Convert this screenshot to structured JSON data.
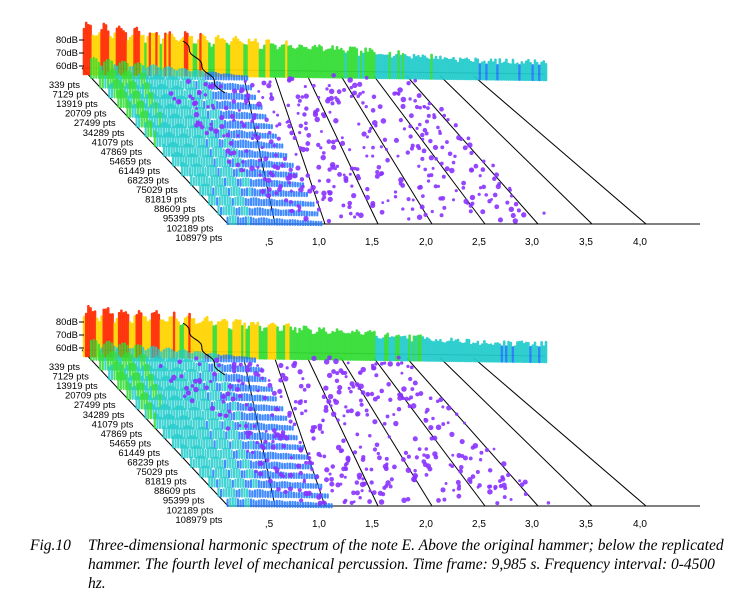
{
  "figure": {
    "db_labels": [
      "80dB",
      "70dB",
      "60dB"
    ],
    "row_labels": [
      "339 pts",
      "7129 pts",
      "13919 pts",
      "20709 pts",
      "27499 pts",
      "34289 pts",
      "41079 pts",
      "47869 pts",
      "54659 pts",
      "61449 pts",
      "68239 pts",
      "75029 pts",
      "81819 pts",
      "88609 pts",
      "95399 pts",
      "102189 pts",
      "108979 pts"
    ],
    "freq_ticks": [
      ",5",
      "1,0",
      "1,5",
      "2,0",
      "2,5",
      "3,0",
      "3,5",
      "4,0"
    ],
    "colors": {
      "high": "#ff2a00",
      "mid_high": "#ffd400",
      "mid": "#33dd33",
      "mid_low": "#22cccc",
      "low": "#2277ff",
      "floor": "#8833ff",
      "axis": "#000000"
    }
  },
  "caption": {
    "label": "Fig.10",
    "text": "Three-dimensional harmonic spectrum of the note E. Above the original hammer; below the replicated hammer. The fourth level of mechanical percussion. Time frame: 9,985 s. Frequency interval: 0-4500 hz."
  }
}
